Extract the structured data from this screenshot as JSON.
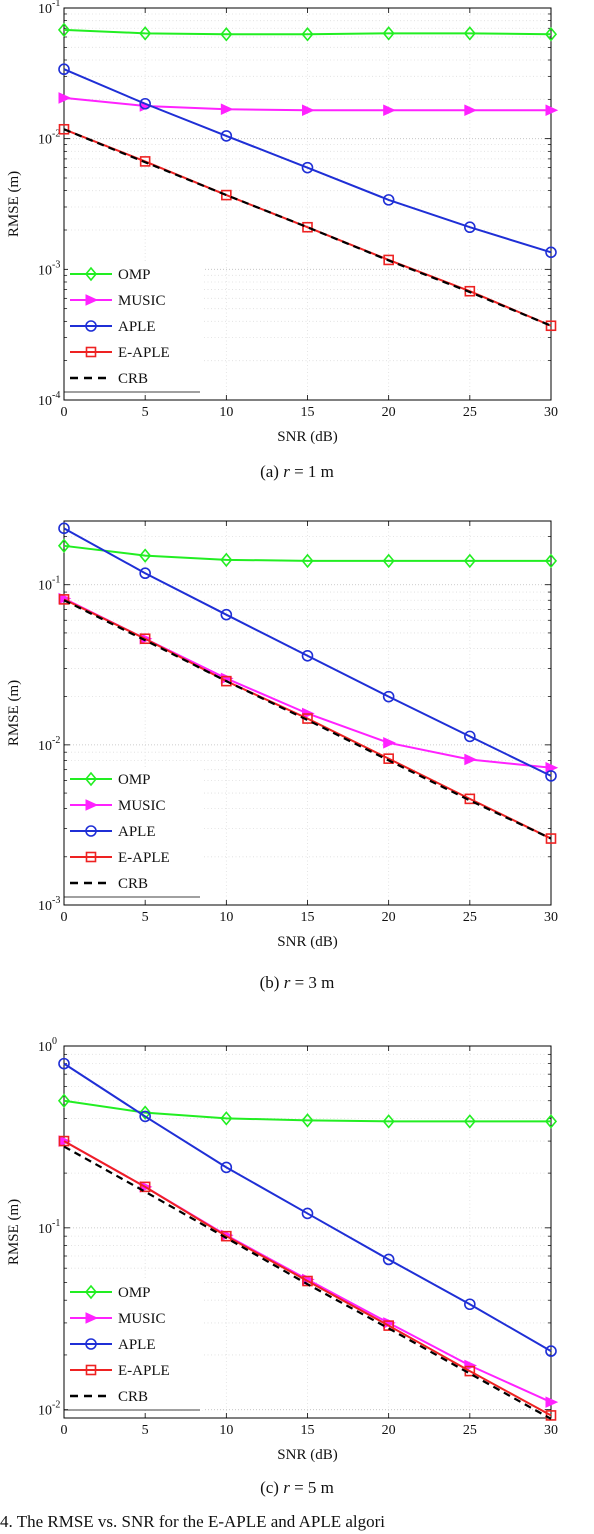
{
  "chart_data": [
    {
      "type": "line",
      "yscale": "log",
      "xlabel": "SNR (dB)",
      "ylabel": "RMSE (m)",
      "xlim": [
        0,
        30
      ],
      "ylim": [
        0.0001,
        0.1
      ],
      "xticks": [
        "0",
        "5",
        "10",
        "15",
        "20",
        "25",
        "30"
      ],
      "yticks": [
        {
          "base": "10",
          "exp": "-4"
        },
        {
          "base": "10",
          "exp": "-3"
        },
        {
          "base": "10",
          "exp": "-2"
        },
        {
          "base": "10",
          "exp": "-1"
        }
      ],
      "legend_position": "bottom-left",
      "grid": true,
      "x": [
        0,
        5,
        10,
        15,
        20,
        25,
        30
      ],
      "series": [
        {
          "name": "OMP",
          "color": "#22ee22",
          "marker": "diamond",
          "dash": false,
          "values": [
            0.068,
            0.064,
            0.063,
            0.063,
            0.064,
            0.064,
            0.063
          ]
        },
        {
          "name": "MUSIC",
          "color": "#ff22ff",
          "marker": "triangle-right",
          "dash": false,
          "values": [
            0.0205,
            0.0178,
            0.0168,
            0.0165,
            0.0165,
            0.0165,
            0.0165
          ]
        },
        {
          "name": "APLE",
          "color": "#1f2fd6",
          "marker": "circle",
          "dash": false,
          "values": [
            0.034,
            0.0185,
            0.0105,
            0.006,
            0.0034,
            0.0021,
            0.00135
          ]
        },
        {
          "name": "E-APLE",
          "color": "#ee2222",
          "marker": "square",
          "dash": false,
          "values": [
            0.0118,
            0.0067,
            0.0037,
            0.0021,
            0.00118,
            0.00068,
            0.00037
          ]
        },
        {
          "name": "CRB",
          "color": "#000000",
          "marker": "none",
          "dash": true,
          "values": [
            0.0118,
            0.0066,
            0.0037,
            0.0021,
            0.00117,
            0.00067,
            0.00037
          ]
        }
      ],
      "caption": {
        "label": "(a)",
        "var": "r",
        "rest": " = 1 m"
      }
    },
    {
      "type": "line",
      "yscale": "log",
      "xlabel": "SNR (dB)",
      "ylabel": "RMSE (m)",
      "xlim": [
        0,
        30
      ],
      "ylim": [
        0.001,
        0.25
      ],
      "xticks": [
        "0",
        "5",
        "10",
        "15",
        "20",
        "25",
        "30"
      ],
      "yticks": [
        {
          "base": "10",
          "exp": "-3"
        },
        {
          "base": "10",
          "exp": "-2"
        },
        {
          "base": "10",
          "exp": "-1"
        }
      ],
      "legend_position": "bottom-left",
      "grid": true,
      "x": [
        0,
        5,
        10,
        15,
        20,
        25,
        30
      ],
      "series": [
        {
          "name": "OMP",
          "color": "#22ee22",
          "marker": "diamond",
          "dash": false,
          "values": [
            0.175,
            0.152,
            0.143,
            0.141,
            0.141,
            0.141,
            0.141
          ]
        },
        {
          "name": "MUSIC",
          "color": "#ff22ff",
          "marker": "triangle-right",
          "dash": false,
          "values": [
            0.082,
            0.046,
            0.026,
            0.0157,
            0.0103,
            0.0081,
            0.0072
          ]
        },
        {
          "name": "APLE",
          "color": "#1f2fd6",
          "marker": "circle",
          "dash": false,
          "values": [
            0.225,
            0.118,
            0.065,
            0.036,
            0.02,
            0.0113,
            0.0064
          ]
        },
        {
          "name": "E-APLE",
          "color": "#ee2222",
          "marker": "square",
          "dash": false,
          "values": [
            0.081,
            0.046,
            0.025,
            0.0146,
            0.0082,
            0.0046,
            0.0026
          ]
        },
        {
          "name": "CRB",
          "color": "#000000",
          "marker": "none",
          "dash": true,
          "values": [
            0.08,
            0.045,
            0.025,
            0.0143,
            0.008,
            0.0045,
            0.0026
          ]
        }
      ],
      "caption": {
        "label": "(b)",
        "var": "r",
        "rest": " = 3 m"
      }
    },
    {
      "type": "line",
      "yscale": "log",
      "xlabel": "SNR (dB)",
      "ylabel": "RMSE (m)",
      "xlim": [
        0,
        30
      ],
      "ylim": [
        0.009,
        1.0
      ],
      "xticks": [
        "0",
        "5",
        "10",
        "15",
        "20",
        "25",
        "30"
      ],
      "yticks": [
        {
          "base": "10",
          "exp": "-2"
        },
        {
          "base": "10",
          "exp": "-1"
        },
        {
          "base": "10",
          "exp": "0"
        }
      ],
      "legend_position": "bottom-left",
      "grid": true,
      "x": [
        0,
        5,
        10,
        15,
        20,
        25,
        30
      ],
      "series": [
        {
          "name": "OMP",
          "color": "#22ee22",
          "marker": "diamond",
          "dash": false,
          "values": [
            0.5,
            0.43,
            0.4,
            0.39,
            0.385,
            0.385,
            0.385
          ]
        },
        {
          "name": "MUSIC",
          "color": "#ff22ff",
          "marker": "triangle-right",
          "dash": false,
          "values": [
            0.3,
            0.168,
            0.091,
            0.052,
            0.03,
            0.0175,
            0.011
          ]
        },
        {
          "name": "APLE",
          "color": "#1f2fd6",
          "marker": "circle",
          "dash": false,
          "values": [
            0.8,
            0.41,
            0.215,
            0.12,
            0.067,
            0.038,
            0.021
          ]
        },
        {
          "name": "E-APLE",
          "color": "#ee2222",
          "marker": "square",
          "dash": false,
          "values": [
            0.3,
            0.168,
            0.09,
            0.051,
            0.029,
            0.0163,
            0.0093
          ]
        },
        {
          "name": "CRB",
          "color": "#000000",
          "marker": "none",
          "dash": true,
          "values": [
            0.28,
            0.158,
            0.088,
            0.049,
            0.028,
            0.0158,
            0.0089
          ]
        }
      ],
      "caption": {
        "label": "(c)",
        "var": "r",
        "rest": " = 5 m"
      }
    }
  ],
  "bottom_caption": "4. The RMSE vs. SNR for the E-APLE and APLE algori"
}
